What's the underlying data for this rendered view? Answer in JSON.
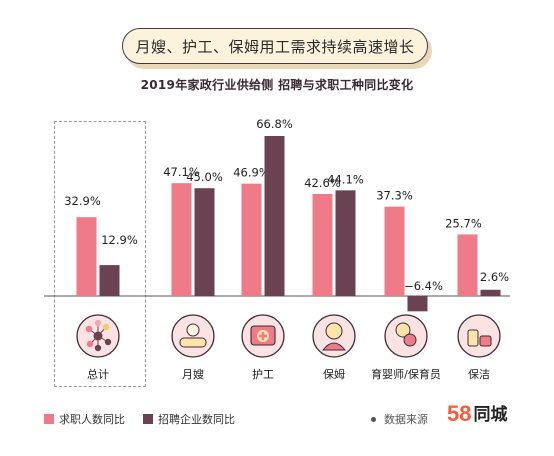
{
  "headline": "月嫂、护工、保姆用工需求持续高速增长",
  "chart_data": {
    "type": "bar",
    "title": "2019年家政行业供给侧 招聘与求职工种同比变化",
    "categories": [
      "总计",
      "月嫂",
      "护工",
      "保姆",
      "育婴师/保育员",
      "保洁"
    ],
    "series": [
      {
        "name": "求职人数同比",
        "color": "#ee7b87",
        "values": [
          32.9,
          47.1,
          46.9,
          42.6,
          37.3,
          25.7
        ]
      },
      {
        "name": "招聘企业数同比",
        "color": "#6b4251",
        "values": [
          12.9,
          45.0,
          66.8,
          44.1,
          -6.4,
          2.6
        ]
      }
    ],
    "value_labels": [
      [
        "32.9%",
        "47.1%",
        "46.9%",
        "42.6%",
        "37.3%",
        "25.7%"
      ],
      [
        "12.9%",
        "45.0%",
        "66.8%",
        "44.1%",
        "−6.4%",
        "2.6%"
      ]
    ],
    "highlighted_category": "总计",
    "grid": false,
    "legend_position": "bottom-left"
  },
  "icons": [
    "network-icon",
    "bathing-baby-icon",
    "first-aid-kit-icon",
    "nanny-icon",
    "baby-care-icon",
    "cleaning-supplies-icon"
  ],
  "source_label": "数据来源",
  "logo": {
    "number": "58",
    "text": "同城"
  }
}
